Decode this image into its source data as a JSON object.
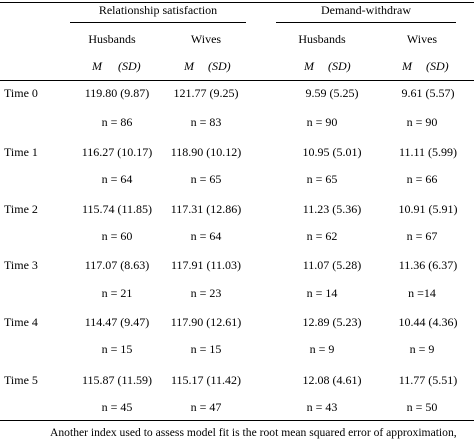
{
  "table": {
    "groups": [
      "Relationship satisfaction",
      "Demand-withdraw"
    ],
    "subheads": [
      "Husbands",
      "Wives",
      "Husbands",
      "Wives"
    ],
    "stat_label_m": "M",
    "stat_label_sd": "(SD)",
    "rows": [
      {
        "label": "Time 0",
        "cells": [
          "119.80 (9.87)",
          "121.77 (9.25)",
          "9.59 (5.25)",
          "9.61 (5.57)"
        ],
        "ns": [
          "n = 86",
          "n = 83",
          "n = 90",
          "n = 90"
        ]
      },
      {
        "label": "Time 1",
        "cells": [
          "116.27 (10.17)",
          "118.90 (10.12)",
          "10.95 (5.01)",
          "11.11 (5.99)"
        ],
        "ns": [
          "n = 64",
          "n = 65",
          "n = 65",
          "n = 66"
        ]
      },
      {
        "label": "Time 2",
        "cells": [
          "115.74 (11.85)",
          "117.31 (12.86)",
          "11.23 (5.36)",
          "10.91 (5.91)"
        ],
        "ns": [
          "n = 60",
          "n = 64",
          "n = 62",
          "n = 67"
        ]
      },
      {
        "label": "Time 3",
        "cells": [
          "117.07 (8.63)",
          "117.91 (11.03)",
          "11.07 (5.28)",
          "11.36 (6.37)"
        ],
        "ns": [
          "n = 21",
          "n = 23",
          "n = 14",
          "n =14"
        ]
      },
      {
        "label": "Time 4",
        "cells": [
          "114.47 (9.47)",
          "117.90 (12.61)",
          "12.89 (5.23)",
          "10.44 (4.36)"
        ],
        "ns": [
          "n = 15",
          "n = 15",
          "n = 9",
          "n = 9"
        ]
      },
      {
        "label": "Time 5",
        "cells": [
          "115.87 (11.59)",
          "115.17 (11.42)",
          "12.08 (4.61)",
          "11.77 (5.51)"
        ],
        "ns": [
          "n = 45",
          "n = 47",
          "n = 43",
          "n = 50"
        ]
      }
    ]
  },
  "footer_text": "Another index used to assess model fit is the root mean squared error of approximation,"
}
